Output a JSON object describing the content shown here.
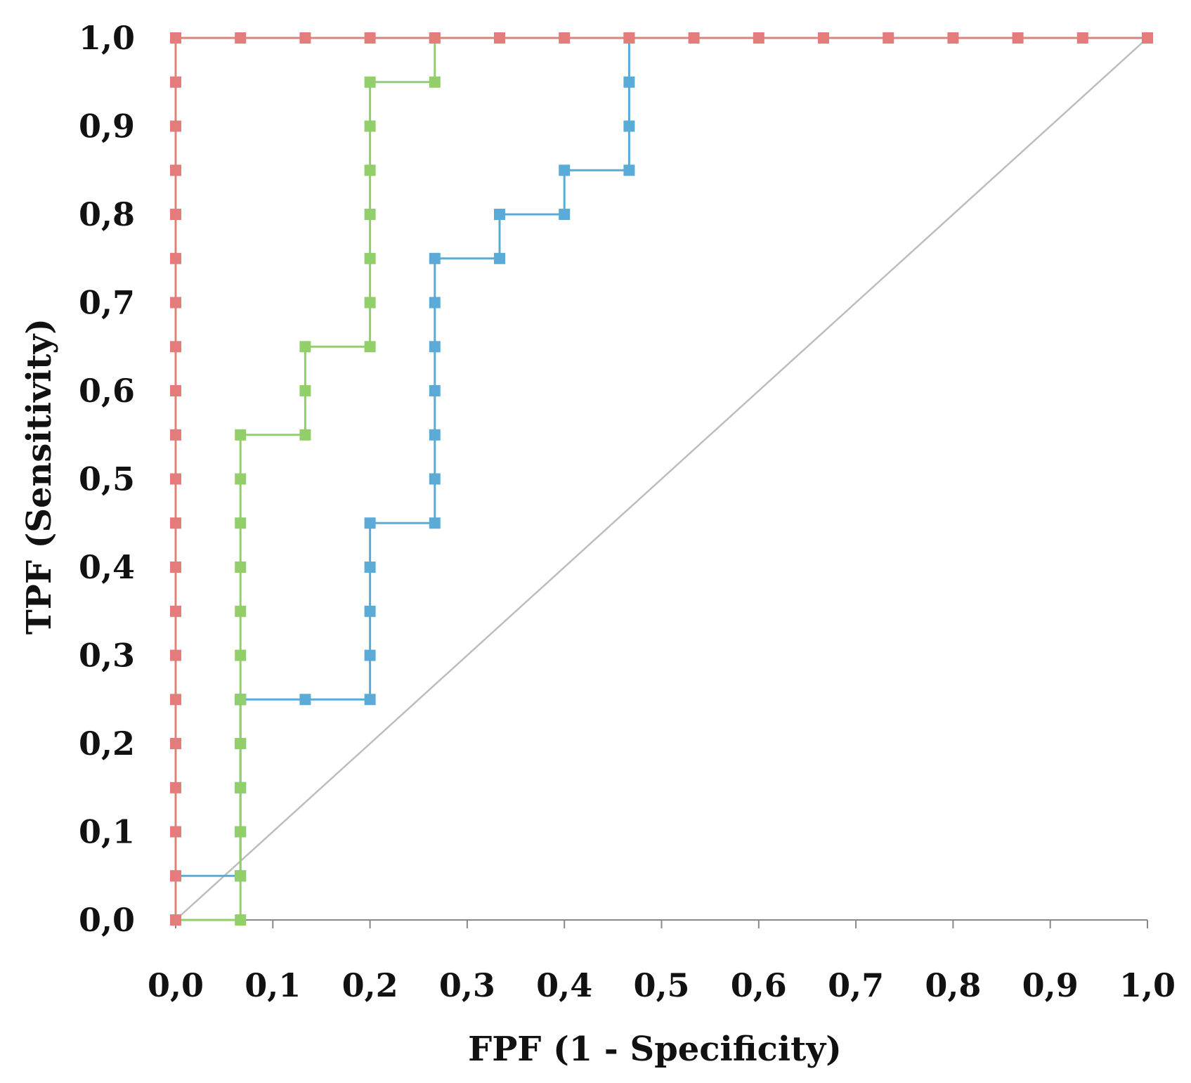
{
  "chart_data": {
    "type": "line",
    "title": "",
    "xlabel": "FPF (1 - Specificity)",
    "ylabel": "TPF (Sensitivity)",
    "xlim": [
      0,
      1
    ],
    "ylim": [
      0,
      1
    ],
    "grid": false,
    "legend": "none",
    "x_tick_labels": [
      "0,0",
      "0,1",
      "0,2",
      "0,3",
      "0,4",
      "0,5",
      "0,6",
      "0,7",
      "0,8",
      "0,9",
      "1,0"
    ],
    "y_tick_labels": [
      "0,0",
      "0,1",
      "0,2",
      "0,3",
      "0,4",
      "0,5",
      "0,6",
      "0,7",
      "0,8",
      "0,9",
      "1,0"
    ],
    "reference_line": {
      "name": "chance diagonal",
      "color": "#bdbdbd",
      "x": [
        0,
        1
      ],
      "y": [
        0,
        1
      ]
    },
    "series": [
      {
        "name": "blue",
        "color": "#5aabd8",
        "line_color": "#5aabd8",
        "x": [
          0,
          0,
          0.0667,
          0.0667,
          0.0667,
          0.0667,
          0.0667,
          0.0667,
          0.1333,
          0.2,
          0.2,
          0.2,
          0.2,
          0.2,
          0.2667,
          0.2667,
          0.2667,
          0.2667,
          0.2667,
          0.2667,
          0.2667,
          0.3333,
          0.3333,
          0.4,
          0.4,
          0.4667,
          0.4667,
          0.4667,
          0.4667
        ],
        "y": [
          0,
          0.05,
          0.05,
          0.1,
          0.15,
          0.2,
          0.25,
          0.25,
          0.25,
          0.25,
          0.3,
          0.35,
          0.4,
          0.45,
          0.45,
          0.5,
          0.55,
          0.6,
          0.65,
          0.7,
          0.75,
          0.75,
          0.8,
          0.8,
          0.85,
          0.85,
          0.9,
          0.95,
          1.0
        ]
      },
      {
        "name": "green",
        "color": "#92cf6a",
        "line_color": "#92cf6a",
        "x": [
          0,
          0.0667,
          0.0667,
          0.0667,
          0.0667,
          0.0667,
          0.0667,
          0.0667,
          0.0667,
          0.0667,
          0.0667,
          0.0667,
          0.0667,
          0.1333,
          0.1333,
          0.1333,
          0.2,
          0.2,
          0.2,
          0.2,
          0.2,
          0.2,
          0.2,
          0.2667,
          0.2667
        ],
        "y": [
          0,
          0,
          0.05,
          0.1,
          0.15,
          0.2,
          0.25,
          0.3,
          0.35,
          0.4,
          0.45,
          0.5,
          0.55,
          0.55,
          0.6,
          0.65,
          0.65,
          0.7,
          0.75,
          0.8,
          0.85,
          0.9,
          0.95,
          0.95,
          1.0
        ]
      },
      {
        "name": "red",
        "color": "#e47c7c",
        "line_color": "#d9847c",
        "x": [
          0,
          0,
          0,
          0,
          0,
          0,
          0,
          0,
          0,
          0,
          0,
          0,
          0,
          0,
          0,
          0,
          0,
          0,
          0,
          0,
          0,
          0.0667,
          0.1333,
          0.2,
          0.2667,
          0.3333,
          0.4,
          0.4667,
          0.5333,
          0.6,
          0.6667,
          0.7333,
          0.8,
          0.8667,
          0.9333,
          1.0
        ],
        "y": [
          0,
          0.05,
          0.1,
          0.15,
          0.2,
          0.25,
          0.3,
          0.35,
          0.4,
          0.45,
          0.5,
          0.55,
          0.6,
          0.65,
          0.7,
          0.75,
          0.8,
          0.85,
          0.9,
          0.95,
          1.0,
          1.0,
          1.0,
          1.0,
          1.0,
          1.0,
          1.0,
          1.0,
          1.0,
          1.0,
          1.0,
          1.0,
          1.0,
          1.0,
          1.0,
          1.0
        ]
      }
    ]
  }
}
